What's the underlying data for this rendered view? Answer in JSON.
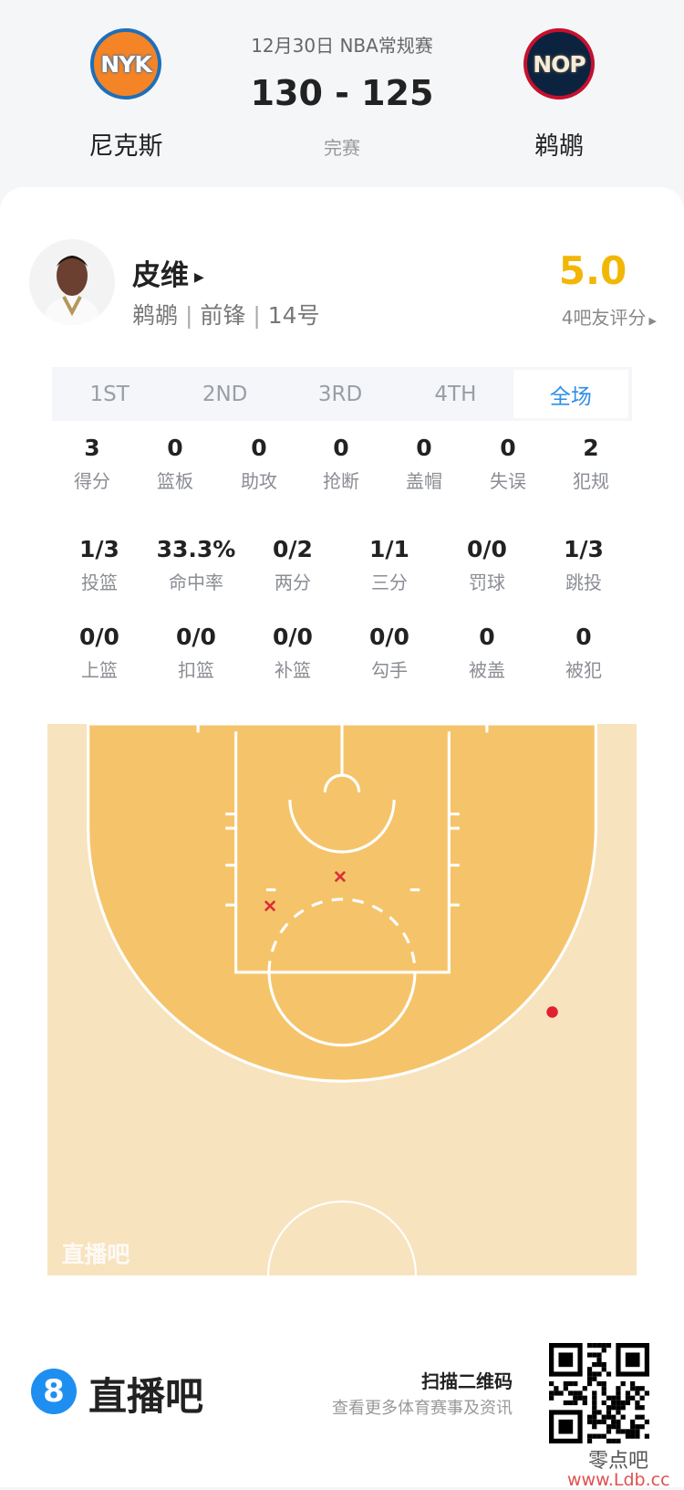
{
  "match": {
    "date_league": "12月30日 NBA常规赛",
    "score": "130 - 125",
    "status": "完赛",
    "home": {
      "abbr": "NYK",
      "name": "尼克斯"
    },
    "away": {
      "abbr": "NOP",
      "name": "鹈鹕"
    }
  },
  "player": {
    "name": "皮维",
    "team": "鹈鹕",
    "position": "前锋",
    "number": "14号",
    "rating": "5.0",
    "rating_label": "4吧友评分"
  },
  "tabs": [
    {
      "label": "1ST"
    },
    {
      "label": "2ND"
    },
    {
      "label": "3RD"
    },
    {
      "label": "4TH"
    },
    {
      "label": "全场",
      "active": true
    }
  ],
  "stats_row1": [
    {
      "v": "3",
      "l": "得分"
    },
    {
      "v": "0",
      "l": "篮板"
    },
    {
      "v": "0",
      "l": "助攻"
    },
    {
      "v": "0",
      "l": "抢断"
    },
    {
      "v": "0",
      "l": "盖帽"
    },
    {
      "v": "0",
      "l": "失误"
    },
    {
      "v": "2",
      "l": "犯规"
    }
  ],
  "stats_row2": [
    {
      "v": "1/3",
      "l": "投篮"
    },
    {
      "v": "33.3%",
      "l": "命中率"
    },
    {
      "v": "0/2",
      "l": "两分"
    },
    {
      "v": "1/1",
      "l": "三分"
    },
    {
      "v": "0/0",
      "l": "罚球"
    },
    {
      "v": "1/3",
      "l": "跳投"
    }
  ],
  "stats_row3": [
    {
      "v": "0/0",
      "l": "上篮"
    },
    {
      "v": "0/0",
      "l": "扣篮"
    },
    {
      "v": "0/0",
      "l": "补篮"
    },
    {
      "v": "0/0",
      "l": "勾手"
    },
    {
      "v": "0",
      "l": "被盖"
    },
    {
      "v": "0",
      "l": "被犯"
    }
  ],
  "shot_chart": {
    "watermark": "直播吧",
    "shots": [
      {
        "result": "miss",
        "zone": "paint-top"
      },
      {
        "result": "miss",
        "zone": "paint-left"
      },
      {
        "result": "made",
        "zone": "right-wing-three"
      }
    ],
    "colors": {
      "outer": "#f8e3bf",
      "inner": "#f5c46a",
      "made": "#e0202e",
      "miss": "#d9303a"
    }
  },
  "footer": {
    "brand": "直播吧",
    "brand_icon": "8",
    "scan_title": "扫描二维码",
    "scan_sub": "查看更多体育赛事及资讯",
    "watermark_cn": "零点吧",
    "watermark_url": "www.Ldb.cc"
  },
  "colors": {
    "accent": "#2e8fe6",
    "rating": "#f2b705"
  }
}
